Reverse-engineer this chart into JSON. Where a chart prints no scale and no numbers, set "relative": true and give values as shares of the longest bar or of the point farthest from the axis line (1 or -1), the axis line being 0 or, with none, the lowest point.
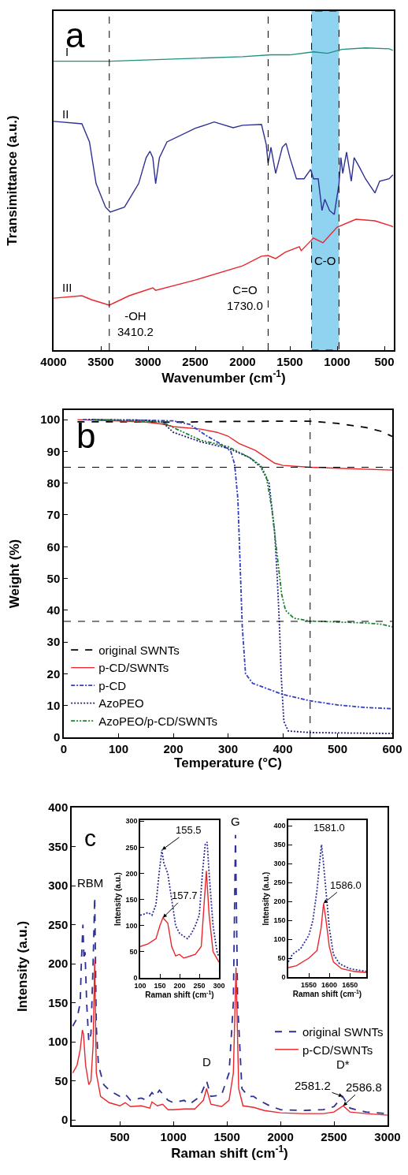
{
  "chart_data": [
    {
      "type": "line",
      "relative": true,
      "xlabel": "Wavenumber (cm$^{-1}$)",
      "ylabel": "Transimittance (a.u.)",
      "xlim": [
        4000,
        400
      ],
      "xticks": [
        4000,
        3500,
        3000,
        2500,
        2000,
        1500,
        1000,
        500
      ],
      "grid": false,
      "series": [
        {
          "color": "#1f8f80",
          "line_style": "solid",
          "x": [
            4000,
            3400,
            2000,
            1700,
            1500,
            1250,
            1100,
            950,
            700,
            450,
            410
          ],
          "values": [
            0.956,
            0.956,
            0.971,
            0.977,
            0.977,
            0.987,
            0.982,
            0.995,
            1.0,
            0.997,
            0.992
          ]
        },
        {
          "color": "#2e3192",
          "line_style": "solid",
          "x": [
            4000,
            3700,
            3620,
            3550,
            3450,
            3400,
            3250,
            3100,
            3020,
            2980,
            2950,
            2920,
            2880,
            2800,
            2500,
            2300,
            2100,
            2000,
            1800,
            1750,
            1730,
            1700,
            1650,
            1580,
            1540,
            1500,
            1430,
            1350,
            1280,
            1250,
            1200,
            1160,
            1130,
            1080,
            1030,
            980,
            960,
            940,
            900,
            850,
            820,
            760,
            700,
            600,
            550,
            450,
            410
          ],
          "values": [
            0.757,
            0.749,
            0.689,
            0.551,
            0.473,
            0.457,
            0.473,
            0.551,
            0.637,
            0.658,
            0.637,
            0.551,
            0.637,
            0.689,
            0.734,
            0.755,
            0.736,
            0.744,
            0.747,
            0.681,
            0.619,
            0.671,
            0.585,
            0.671,
            0.684,
            0.637,
            0.567,
            0.567,
            0.598,
            0.567,
            0.567,
            0.462,
            0.499,
            0.462,
            0.449,
            0.551,
            0.637,
            0.585,
            0.655,
            0.559,
            0.637,
            0.603,
            0.567,
            0.52,
            0.559,
            0.567,
            0.58
          ]
        },
        {
          "color": "#e8262b",
          "line_style": "solid",
          "x": [
            4000,
            3700,
            3600,
            3410,
            3200,
            2950,
            2920,
            2500,
            2000,
            1800,
            1730,
            1650,
            1550,
            1400,
            1380,
            1250,
            1150,
            1000,
            800,
            600,
            420,
            410
          ],
          "values": [
            0.172,
            0.18,
            0.167,
            0.149,
            0.18,
            0.206,
            0.198,
            0.232,
            0.279,
            0.311,
            0.313,
            0.303,
            0.324,
            0.342,
            0.329,
            0.371,
            0.355,
            0.407,
            0.433,
            0.428,
            0.41,
            0.407
          ]
        }
      ],
      "ref_lines": [
        {
          "axis": "x",
          "value": 3410.2,
          "color": "#000000",
          "line_style": "dashed"
        },
        {
          "axis": "x",
          "value": 1730.0,
          "color": "#000000",
          "line_style": "dashed"
        }
      ],
      "bands": [
        {
          "axis": "x",
          "from": 1270,
          "to": 980,
          "label": "C-O",
          "color": "#8fd3f0"
        }
      ],
      "annotations": [
        "a",
        "I",
        "II",
        "III",
        {
          "text": "-OH\n3410.2",
          "x": 3410.2,
          "y": 0.149
        },
        {
          "text": "C=O\n1730.0",
          "x": 1730.0,
          "y": 0.313
        }
      ]
    },
    {
      "type": "line",
      "xlabel": "Temperature (°C)",
      "ylabel": "Weight (%)",
      "xlim": [
        0,
        600
      ],
      "ylim": [
        0,
        103
      ],
      "xticks": [
        0,
        100,
        200,
        300,
        400,
        500,
        600
      ],
      "yticks": [
        0,
        10,
        20,
        30,
        40,
        50,
        60,
        70,
        80,
        90,
        100
      ],
      "grid": false,
      "legend": "bottom left",
      "series": [
        {
          "name": "original SWNTs",
          "color": "#000000",
          "line_style": "dashed",
          "x": [
            25,
            100,
            200,
            300,
            400,
            450,
            500,
            550,
            580,
            600
          ],
          "values": [
            99.3,
            99.3,
            99.2,
            99.4,
            99.5,
            99.5,
            98.8,
            97.6,
            96.3,
            94.7
          ]
        },
        {
          "name": "p-CD/SWNTs",
          "color": "#e8262b",
          "line_style": "solid",
          "x": [
            25,
            100,
            150,
            180,
            200,
            250,
            280,
            300,
            320,
            350,
            370,
            385,
            400,
            450,
            500,
            600
          ],
          "values": [
            100,
            99.6,
            99.2,
            98.6,
            97.8,
            97,
            96,
            94.8,
            92.5,
            90.3,
            88,
            86.3,
            85.6,
            85,
            84.7,
            84.1
          ]
        },
        {
          "name": "p-CD",
          "color": "#3040c0",
          "line_style": "dashdot",
          "x": [
            35,
            150,
            200,
            230,
            260,
            290,
            305,
            312,
            318,
            322,
            326,
            332,
            345,
            400,
            450,
            500,
            550,
            600
          ],
          "values": [
            100,
            99.8,
            99.6,
            98.5,
            95,
            92,
            90,
            86,
            75,
            55,
            35,
            20,
            17,
            13.5,
            11.5,
            10.2,
            9.4,
            9.0
          ]
        },
        {
          "name": "AzoPEO",
          "color": "#202080",
          "line_style": "dotted",
          "x": [
            45,
            150,
            180,
            200,
            250,
            300,
            340,
            360,
            375,
            385,
            390,
            394,
            397,
            402,
            410,
            450,
            600
          ],
          "values": [
            100,
            99.8,
            99.2,
            96,
            93,
            91,
            88,
            85,
            80,
            65,
            50,
            35,
            20,
            5,
            2,
            1.5,
            1.2
          ]
        },
        {
          "name": "AzoPEO/p-CD/SWNTs",
          "color": "#208030",
          "line_style": "dashdotdot",
          "x": [
            55,
            180,
            200,
            250,
            300,
            340,
            360,
            370,
            380,
            390,
            398,
            405,
            420,
            450,
            500,
            550,
            580,
            600
          ],
          "values": [
            100,
            99.2,
            97.5,
            93.5,
            91.5,
            88,
            85.5,
            82,
            72,
            57,
            45,
            40,
            37.5,
            36.6,
            36.3,
            36,
            35.6,
            34.8
          ]
        }
      ],
      "ref_lines": [
        {
          "axis": "y",
          "value": 85,
          "color": "#000000",
          "line_style": "dashed"
        },
        {
          "axis": "y",
          "value": 36.5,
          "color": "#000000",
          "line_style": "dashed"
        },
        {
          "axis": "x",
          "value": 450,
          "color": "#000000",
          "line_style": "dashed"
        }
      ],
      "annotations": [
        "b"
      ]
    },
    {
      "type": "line",
      "xlabel": "Raman shift (cm$^{-1}$)",
      "ylabel": "Intensity (a.u.)",
      "xlim": [
        50,
        3000
      ],
      "ylim": [
        -7,
        400
      ],
      "xticks": [
        500,
        1000,
        1500,
        2000,
        2500,
        3000
      ],
      "yticks": [
        0,
        50,
        100,
        150,
        200,
        250,
        300,
        350,
        400
      ],
      "grid": false,
      "legend": "right",
      "series": [
        {
          "name": "original SWNTs",
          "color": "#2e3192",
          "line_style": "dashed",
          "x": [
            60,
            100,
            130,
            140,
            155,
            165,
            175,
            190,
            210,
            230,
            250,
            265,
            280,
            300,
            350,
            400,
            500,
            550,
            600,
            700,
            750,
            800,
            830,
            870,
            900,
            950,
            1000,
            1100,
            1150,
            1250,
            1310,
            1350,
            1450,
            1520,
            1560,
            1580,
            1600,
            1640,
            1700,
            1750,
            1800,
            1900,
            2000,
            2200,
            2400,
            2500,
            2580,
            2650,
            2800,
            3000
          ],
          "values": [
            120,
            130,
            150,
            200,
            250,
            205,
            215,
            150,
            100,
            110,
            200,
            285,
            120,
            70,
            45,
            38,
            30,
            33,
            25,
            28,
            25,
            35,
            30,
            38,
            33,
            25,
            22,
            25,
            20,
            30,
            50,
            30,
            32,
            60,
            150,
            365,
            150,
            40,
            30,
            30,
            25,
            18,
            13,
            12,
            13,
            17,
            30,
            15,
            10,
            8
          ]
        },
        {
          "name": "p-CD/SWNTs",
          "color": "#e8262b",
          "line_style": "solid",
          "x": [
            60,
            100,
            130,
            150,
            160,
            180,
            210,
            230,
            250,
            265,
            280,
            320,
            400,
            500,
            550,
            600,
            700,
            780,
            800,
            850,
            900,
            950,
            1000,
            1100,
            1200,
            1280,
            1310,
            1350,
            1450,
            1520,
            1560,
            1585,
            1610,
            1650,
            1750,
            1850,
            2000,
            2200,
            2400,
            2500,
            2586,
            2650,
            2800,
            3000
          ],
          "values": [
            60,
            70,
            90,
            115,
            110,
            70,
            45,
            50,
            95,
            205,
            60,
            30,
            22,
            18,
            22,
            17,
            18,
            15,
            23,
            18,
            20,
            13,
            13,
            14,
            14,
            25,
            40,
            20,
            17,
            25,
            60,
            195,
            40,
            18,
            16,
            12,
            9,
            8,
            8,
            10,
            18,
            10,
            8,
            6
          ]
        }
      ],
      "annotations": [
        "c",
        "RBM",
        {
          "text": "G",
          "x": 1580,
          "y": 365
        },
        {
          "text": "D",
          "x": 1310,
          "y": 50
        },
        {
          "text": "D*",
          "x": 2586.8,
          "y": 30
        },
        {
          "text": "2581.2",
          "x": 2581.2,
          "y": 30
        },
        {
          "text": "2586.8",
          "x": 2586.8,
          "y": 18
        }
      ]
    },
    {
      "type": "line",
      "xlabel": "Raman shift (cm$^{-1}$)",
      "ylabel": "Intensity (a.u.)",
      "xlim": [
        100,
        300
      ],
      "ylim": [
        0,
        302
      ],
      "xticks": [
        100,
        150,
        200,
        250,
        300
      ],
      "yticks": [
        0,
        50,
        100,
        150,
        200,
        250,
        300
      ],
      "grid": false,
      "series": [
        {
          "color": "#2e3192",
          "line_style": "dotted",
          "x": [
            100,
            110,
            120,
            130,
            140,
            148,
            155,
            160,
            170,
            180,
            190,
            200,
            210,
            220,
            230,
            240,
            250,
            258,
            265,
            270,
            275,
            285,
            295,
            300
          ],
          "values": [
            120,
            122,
            125,
            120,
            140,
            200,
            245,
            220,
            200,
            150,
            100,
            85,
            80,
            75,
            85,
            100,
            120,
            200,
            255,
            260,
            200,
            100,
            50,
            40
          ]
        },
        {
          "color": "#e8262b",
          "line_style": "solid",
          "x": [
            100,
            120,
            140,
            150,
            157.7,
            170,
            180,
            190,
            200,
            210,
            220,
            240,
            255,
            263,
            268,
            275,
            285,
            300
          ],
          "values": [
            60,
            65,
            75,
            100,
            115,
            105,
            60,
            42,
            45,
            38,
            40,
            45,
            60,
            150,
            205,
            120,
            50,
            30
          ]
        }
      ],
      "annotations": [
        {
          "text": "155.5",
          "x": 155.5,
          "y": 245
        },
        {
          "text": "157.7",
          "x": 157.7,
          "y": 115
        }
      ]
    },
    {
      "type": "line",
      "xlabel": "Raman shift (cm$^{-1}$)",
      "ylabel": "Intensity (a.u.)",
      "xlim": [
        1500,
        1690
      ],
      "ylim": [
        0,
        415
      ],
      "xticks": [
        1550,
        1600,
        1650
      ],
      "yticks": [
        0,
        50,
        100,
        150,
        200,
        250,
        300,
        350,
        400
      ],
      "grid": false,
      "series": [
        {
          "color": "#2e3192",
          "line_style": "dotted",
          "x": [
            1500,
            1510,
            1530,
            1550,
            1560,
            1570,
            1578,
            1581,
            1585,
            1590,
            1600,
            1610,
            1625,
            1650,
            1690
          ],
          "values": [
            40,
            60,
            75,
            110,
            150,
            230,
            320,
            350,
            310,
            250,
            130,
            60,
            35,
            22,
            15
          ]
        },
        {
          "color": "#e8262b",
          "line_style": "solid",
          "x": [
            1500,
            1520,
            1550,
            1570,
            1580,
            1586,
            1592,
            1600,
            1610,
            1630,
            1660,
            1690
          ],
          "values": [
            25,
            30,
            50,
            70,
            130,
            195,
            150,
            80,
            40,
            22,
            15,
            12
          ]
        }
      ],
      "annotations": [
        {
          "text": "1581.0",
          "x": 1581,
          "y": 350
        },
        {
          "text": "1586.0",
          "x": 1586,
          "y": 195
        }
      ]
    }
  ]
}
